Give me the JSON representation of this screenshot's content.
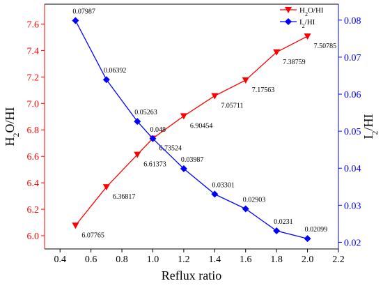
{
  "chart_data": {
    "type": "line",
    "xlabel": "Reflux ratio",
    "x_ticks": [
      "0.4",
      "0.6",
      "0.8",
      "1.0",
      "1.2",
      "1.4",
      "1.6",
      "1.8",
      "2.0",
      "2.2"
    ],
    "x_range": [
      0.3,
      2.2
    ],
    "left_axis": {
      "label_main": "H",
      "label_sub1": "2",
      "label_tail": "O/HI",
      "range": [
        5.9,
        7.75
      ],
      "ticks": [
        "6.0",
        "6.2",
        "6.4",
        "6.6",
        "6.8",
        "7.0",
        "7.2",
        "7.4",
        "7.6"
      ],
      "color": "#ff0000"
    },
    "right_axis": {
      "label_main": "I",
      "label_sub1": "2",
      "label_tail": "/HI",
      "range": [
        0.0182,
        0.0843
      ],
      "ticks": [
        "0.02",
        "0.03",
        "0.04",
        "0.05",
        "0.06",
        "0.07",
        "0.08"
      ],
      "color": "#0000ff"
    },
    "grid": false,
    "legend_position": "top-right",
    "series": [
      {
        "name": "H2O/HI",
        "legend_main": "H",
        "legend_sub": "2",
        "legend_tail": "O/HI",
        "axis": "left",
        "color": "#ff0000",
        "marker": "triangle-down",
        "x": [
          0.5,
          0.7,
          0.9,
          1.0,
          1.2,
          1.4,
          1.6,
          1.8,
          2.0
        ],
        "y": [
          6.07765,
          6.36817,
          6.61373,
          6.73524,
          6.90454,
          7.05711,
          7.17563,
          7.38759,
          7.50785
        ],
        "labels": [
          "6.07765",
          "6.36817",
          "6.61373",
          "6.73524",
          "6.90454",
          "7.05711",
          "7.17563",
          "7.38759",
          "7.50785"
        ]
      },
      {
        "name": "I2/HI",
        "legend_main": "I",
        "legend_sub": "2",
        "legend_tail": "/HI",
        "axis": "right",
        "color": "#0000ff",
        "marker": "diamond",
        "x": [
          0.5,
          0.7,
          0.9,
          1.0,
          1.2,
          1.4,
          1.6,
          1.8,
          2.0
        ],
        "y": [
          0.07987,
          0.06392,
          0.05263,
          0.048,
          0.03987,
          0.03301,
          0.02903,
          0.0231,
          0.02099
        ],
        "labels": [
          "0.07987",
          "0.06392",
          "0.05263",
          "0.048",
          "0.03987",
          "0.03301",
          "0.02903",
          "0.0231",
          "0.02099"
        ]
      }
    ]
  }
}
